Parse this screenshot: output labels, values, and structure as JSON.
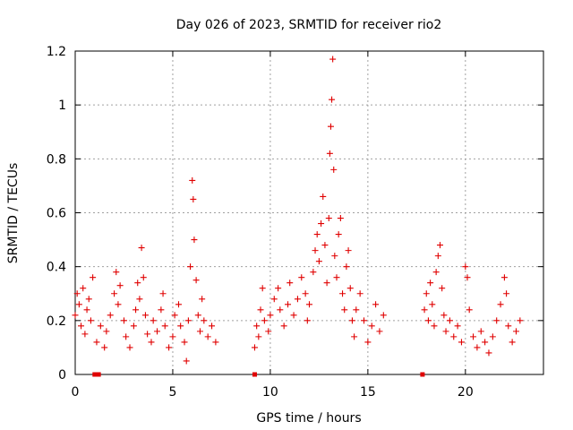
{
  "chart_data": {
    "type": "scatter",
    "title": "Day 026 of 2023, SRMTID for receiver rio2",
    "xlabel": "GPS time / hours",
    "ylabel": "SRMTID / TECUs",
    "xlim": [
      0,
      24
    ],
    "ylim": [
      0,
      1.2
    ],
    "xticks": [
      0,
      5,
      10,
      15,
      20
    ],
    "xtick_labels": [
      "0",
      "5",
      "10",
      "15",
      "20"
    ],
    "yticks": [
      0,
      0.2,
      0.4,
      0.6,
      0.8,
      1.0,
      1.2
    ],
    "ytick_labels": [
      "0",
      "0.2",
      "0.4",
      "0.6",
      "0.8",
      "1",
      "1.2"
    ],
    "grid": true,
    "color": "#e00000",
    "marker": "plus",
    "series": [
      {
        "name": "SRMTID",
        "points": [
          [
            0.0,
            0.22
          ],
          [
            0.1,
            0.3
          ],
          [
            0.2,
            0.26
          ],
          [
            0.3,
            0.18
          ],
          [
            0.4,
            0.32
          ],
          [
            0.5,
            0.15
          ],
          [
            0.6,
            0.24
          ],
          [
            0.7,
            0.28
          ],
          [
            0.8,
            0.2
          ],
          [
            0.9,
            0.36
          ],
          [
            1.1,
            0.12
          ],
          [
            1.3,
            0.18
          ],
          [
            1.5,
            0.1
          ],
          [
            1.6,
            0.16
          ],
          [
            1.8,
            0.22
          ],
          [
            2.0,
            0.3
          ],
          [
            2.1,
            0.38
          ],
          [
            2.2,
            0.26
          ],
          [
            2.3,
            0.33
          ],
          [
            2.5,
            0.2
          ],
          [
            2.6,
            0.14
          ],
          [
            2.8,
            0.1
          ],
          [
            3.0,
            0.18
          ],
          [
            3.1,
            0.24
          ],
          [
            3.2,
            0.34
          ],
          [
            3.3,
            0.28
          ],
          [
            3.4,
            0.47
          ],
          [
            3.5,
            0.36
          ],
          [
            3.6,
            0.22
          ],
          [
            3.7,
            0.15
          ],
          [
            3.9,
            0.12
          ],
          [
            4.0,
            0.2
          ],
          [
            4.2,
            0.16
          ],
          [
            4.4,
            0.24
          ],
          [
            4.5,
            0.3
          ],
          [
            4.6,
            0.18
          ],
          [
            4.8,
            0.1
          ],
          [
            5.0,
            0.14
          ],
          [
            5.1,
            0.22
          ],
          [
            5.3,
            0.26
          ],
          [
            5.4,
            0.18
          ],
          [
            5.6,
            0.12
          ],
          [
            5.7,
            0.05
          ],
          [
            5.8,
            0.2
          ],
          [
            5.9,
            0.4
          ],
          [
            6.0,
            0.72
          ],
          [
            6.05,
            0.65
          ],
          [
            6.1,
            0.5
          ],
          [
            6.2,
            0.35
          ],
          [
            6.3,
            0.22
          ],
          [
            6.4,
            0.16
          ],
          [
            6.5,
            0.28
          ],
          [
            6.6,
            0.2
          ],
          [
            6.8,
            0.14
          ],
          [
            7.0,
            0.18
          ],
          [
            7.2,
            0.12
          ],
          [
            9.2,
            0.1
          ],
          [
            9.3,
            0.18
          ],
          [
            9.4,
            0.14
          ],
          [
            9.5,
            0.24
          ],
          [
            9.6,
            0.32
          ],
          [
            9.7,
            0.2
          ],
          [
            9.9,
            0.16
          ],
          [
            10.0,
            0.22
          ],
          [
            10.2,
            0.28
          ],
          [
            10.4,
            0.32
          ],
          [
            10.5,
            0.24
          ],
          [
            10.7,
            0.18
          ],
          [
            10.9,
            0.26
          ],
          [
            11.0,
            0.34
          ],
          [
            11.2,
            0.22
          ],
          [
            11.4,
            0.28
          ],
          [
            11.6,
            0.36
          ],
          [
            11.8,
            0.3
          ],
          [
            11.9,
            0.2
          ],
          [
            12.0,
            0.26
          ],
          [
            12.2,
            0.38
          ],
          [
            12.3,
            0.46
          ],
          [
            12.4,
            0.52
          ],
          [
            12.5,
            0.42
          ],
          [
            12.6,
            0.56
          ],
          [
            12.7,
            0.66
          ],
          [
            12.8,
            0.48
          ],
          [
            12.9,
            0.34
          ],
          [
            13.0,
            0.58
          ],
          [
            13.05,
            0.82
          ],
          [
            13.1,
            0.92
          ],
          [
            13.15,
            1.02
          ],
          [
            13.2,
            1.17
          ],
          [
            13.25,
            0.76
          ],
          [
            13.3,
            0.44
          ],
          [
            13.4,
            0.36
          ],
          [
            13.5,
            0.52
          ],
          [
            13.6,
            0.58
          ],
          [
            13.7,
            0.3
          ],
          [
            13.8,
            0.24
          ],
          [
            13.9,
            0.4
          ],
          [
            14.0,
            0.46
          ],
          [
            14.1,
            0.32
          ],
          [
            14.2,
            0.2
          ],
          [
            14.3,
            0.14
          ],
          [
            14.4,
            0.24
          ],
          [
            14.6,
            0.3
          ],
          [
            14.8,
            0.2
          ],
          [
            15.0,
            0.12
          ],
          [
            15.2,
            0.18
          ],
          [
            15.4,
            0.26
          ],
          [
            15.6,
            0.16
          ],
          [
            15.8,
            0.22
          ],
          [
            17.9,
            0.24
          ],
          [
            18.0,
            0.3
          ],
          [
            18.1,
            0.2
          ],
          [
            18.2,
            0.34
          ],
          [
            18.3,
            0.26
          ],
          [
            18.4,
            0.18
          ],
          [
            18.5,
            0.38
          ],
          [
            18.6,
            0.44
          ],
          [
            18.7,
            0.48
          ],
          [
            18.8,
            0.32
          ],
          [
            18.9,
            0.22
          ],
          [
            19.0,
            0.16
          ],
          [
            19.2,
            0.2
          ],
          [
            19.4,
            0.14
          ],
          [
            19.6,
            0.18
          ],
          [
            19.8,
            0.12
          ],
          [
            20.0,
            0.4
          ],
          [
            20.1,
            0.36
          ],
          [
            20.2,
            0.24
          ],
          [
            20.4,
            0.14
          ],
          [
            20.6,
            0.1
          ],
          [
            20.8,
            0.16
          ],
          [
            21.0,
            0.12
          ],
          [
            21.2,
            0.08
          ],
          [
            21.4,
            0.14
          ],
          [
            21.6,
            0.2
          ],
          [
            21.8,
            0.26
          ],
          [
            22.0,
            0.36
          ],
          [
            22.1,
            0.3
          ],
          [
            22.2,
            0.18
          ],
          [
            22.4,
            0.12
          ],
          [
            22.6,
            0.16
          ],
          [
            22.8,
            0.2
          ]
        ]
      }
    ],
    "zero_markers": [
      1.0,
      1.2,
      9.2,
      17.8
    ]
  }
}
